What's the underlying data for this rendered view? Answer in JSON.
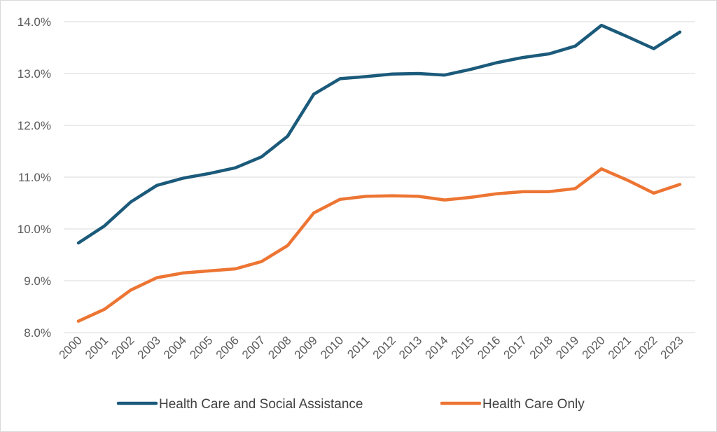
{
  "chart_data": {
    "type": "line",
    "title": "",
    "xlabel": "",
    "ylabel": "",
    "ylim": [
      8.0,
      14.0
    ],
    "y_ticks": [
      "8.0%",
      "9.0%",
      "10.0%",
      "11.0%",
      "12.0%",
      "13.0%",
      "14.0%"
    ],
    "grid": "horizontal",
    "legend_position": "bottom",
    "categories": [
      "2000",
      "2001",
      "2002",
      "2003",
      "2004",
      "2005",
      "2006",
      "2007",
      "2008",
      "2009",
      "2010",
      "2011",
      "2012",
      "2013",
      "2014",
      "2015",
      "2016",
      "2017",
      "2018",
      "2019",
      "2020",
      "2021",
      "2022",
      "2023"
    ],
    "series": [
      {
        "name": "Health Care and Social Assistance",
        "color": "#1b5a7a",
        "values": [
          9.73,
          10.06,
          10.52,
          10.84,
          10.98,
          11.07,
          11.18,
          11.39,
          11.79,
          12.6,
          12.9,
          12.94,
          12.99,
          13.0,
          12.97,
          13.08,
          13.21,
          13.31,
          13.38,
          13.53,
          13.93,
          13.71,
          13.48,
          13.8
        ]
      },
      {
        "name": "Health Care Only",
        "color": "#ed7533",
        "values": [
          8.22,
          8.45,
          8.82,
          9.06,
          9.15,
          9.19,
          9.23,
          9.37,
          9.68,
          10.31,
          10.57,
          10.63,
          10.64,
          10.63,
          10.56,
          10.61,
          10.68,
          10.72,
          10.72,
          10.78,
          11.16,
          10.94,
          10.69,
          10.86
        ]
      }
    ]
  }
}
